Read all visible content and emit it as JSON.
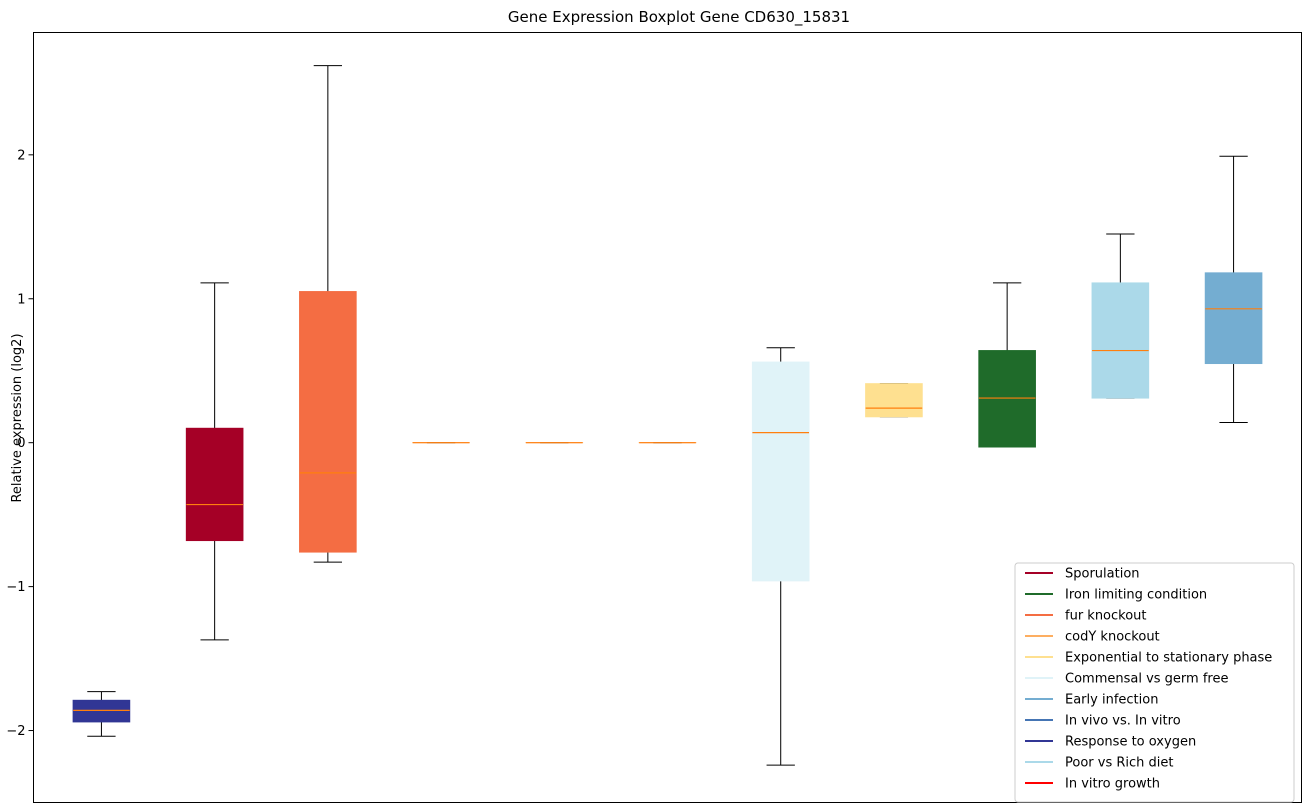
{
  "chart_data": {
    "type": "box",
    "title": "Gene Expression Boxplot Gene CD630_15831",
    "xlabel": "",
    "ylabel": "Relative expression (log2)",
    "ylim": [
      -2.5,
      2.85
    ],
    "yticks": [
      -2,
      -1,
      0,
      1,
      2
    ],
    "ytick_labels": [
      "−2",
      "−1",
      "0",
      "1",
      "2"
    ],
    "grid": false,
    "legend_position": "lower-right",
    "median_color": "#ff7f0e",
    "boxes": [
      {
        "whisker_low": -2.04,
        "q1": -1.94,
        "median": -1.86,
        "q3": -1.79,
        "whisker_high": -1.73,
        "color": "#313695"
      },
      {
        "whisker_low": -1.37,
        "q1": -0.68,
        "median": -0.43,
        "q3": 0.1,
        "whisker_high": 1.11,
        "color": "#a50026"
      },
      {
        "whisker_low": -0.83,
        "q1": -0.76,
        "median": -0.21,
        "q3": 1.05,
        "whisker_high": 2.62,
        "color": "#f46d43"
      },
      {
        "whisker_low": 0,
        "q1": 0,
        "median": 0,
        "q3": 0,
        "whisker_high": 0,
        "color": "#fdae61"
      },
      {
        "whisker_low": 0,
        "q1": 0,
        "median": 0,
        "q3": 0,
        "whisker_high": 0,
        "color": "#fdae61"
      },
      {
        "whisker_low": 0,
        "q1": 0,
        "median": 0,
        "q3": 0,
        "whisker_high": 0,
        "color": "#fdae61"
      },
      {
        "whisker_low": -2.24,
        "q1": -0.96,
        "median": 0.07,
        "q3": 0.56,
        "whisker_high": 0.66,
        "color": "#e0f3f8"
      },
      {
        "whisker_low": 0.18,
        "q1": 0.18,
        "median": 0.24,
        "q3": 0.41,
        "whisker_high": 0.41,
        "color": "#fee090"
      },
      {
        "whisker_low": -0.03,
        "q1": -0.03,
        "median": 0.31,
        "q3": 0.64,
        "whisker_high": 1.11,
        "color": "#1f6b2a"
      },
      {
        "whisker_low": 0.31,
        "q1": 0.31,
        "median": 0.64,
        "q3": 1.11,
        "whisker_high": 1.45,
        "color": "#abd9e9"
      },
      {
        "whisker_low": 0.14,
        "q1": 0.55,
        "median": 0.93,
        "q3": 1.18,
        "whisker_high": 1.99,
        "color": "#74add1"
      }
    ],
    "legend": [
      {
        "label": "Sporulation",
        "color": "#a50026"
      },
      {
        "label": "Iron limiting condition",
        "color": "#1f6b2a"
      },
      {
        "label": "fur knockout",
        "color": "#f46d43"
      },
      {
        "label": "codY knockout",
        "color": "#fdae61"
      },
      {
        "label": "Exponential to stationary phase",
        "color": "#fee090"
      },
      {
        "label": "Commensal vs germ free",
        "color": "#e0f3f8"
      },
      {
        "label": "Early infection",
        "color": "#74add1"
      },
      {
        "label": "In vivo vs. In vitro",
        "color": "#4575b4"
      },
      {
        "label": "Response to oxygen",
        "color": "#313695"
      },
      {
        "label": "Poor vs Rich diet",
        "color": "#abd9e9"
      },
      {
        "label": "In vitro growth",
        "color": "#ff0000"
      }
    ]
  }
}
